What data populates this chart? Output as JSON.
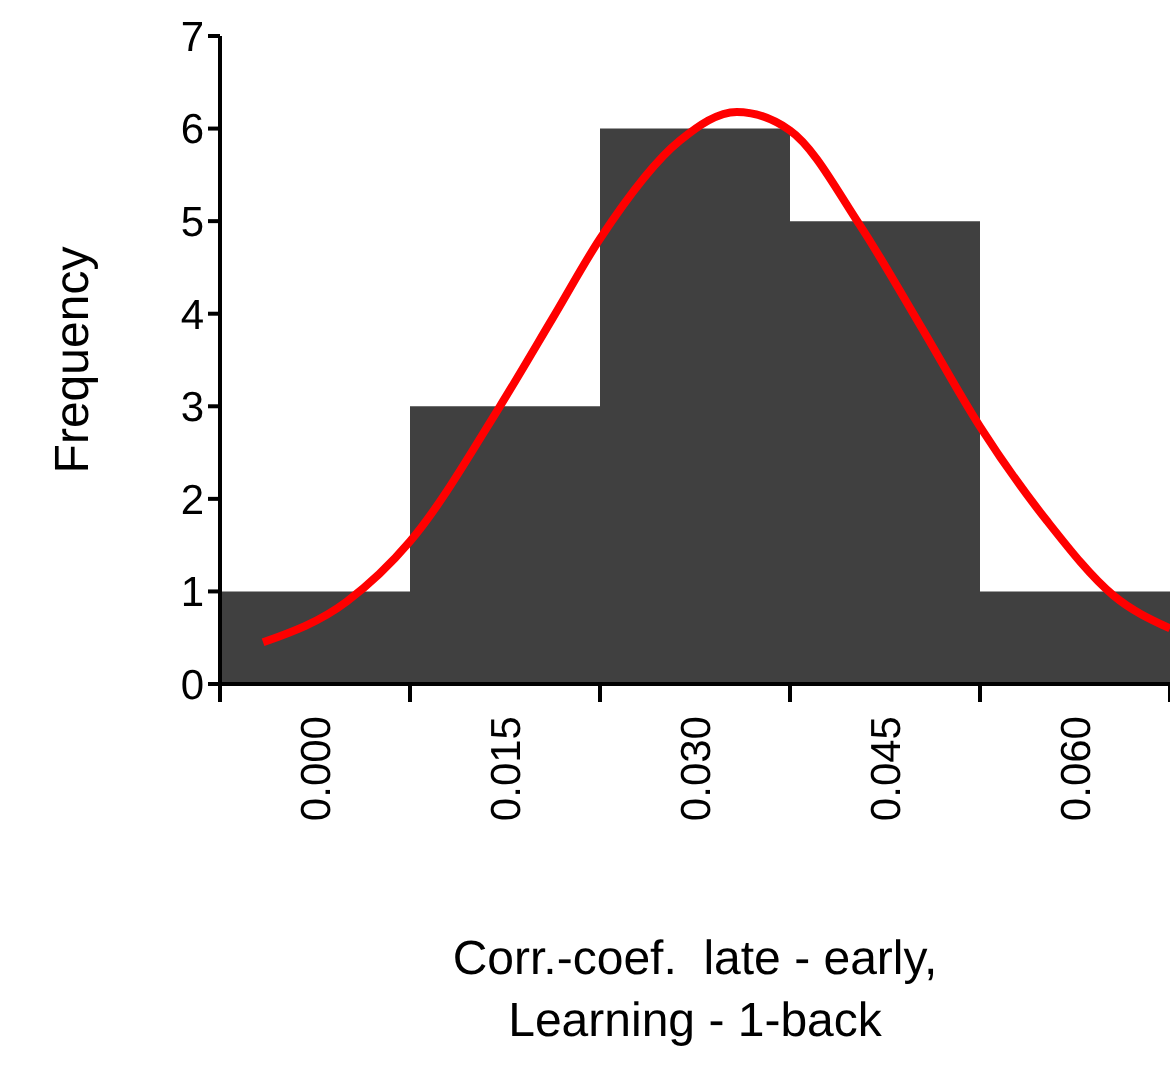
{
  "chart_data": {
    "type": "histogram",
    "xlabel": "Corr.-coef.  late - early,\nLearning - 1-back",
    "ylabel": "Frequency",
    "bins": [
      -0.0075,
      0.0075,
      0.0225,
      0.0375,
      0.0525,
      0.0675
    ],
    "values": [
      1,
      3,
      6,
      5,
      1
    ],
    "color": "#404040",
    "series": [
      {
        "type": "line",
        "color": "#ff0000",
        "x": [
          -0.0041,
          0.0025,
          0.0075,
          0.0146,
          0.0188,
          0.0225,
          0.0288,
          0.0333,
          0.0375,
          0.043,
          0.0478,
          0.0525,
          0.0578,
          0.063,
          0.0675
        ],
        "values": [
          0.45,
          0.89,
          1.54,
          3.0,
          3.96,
          4.81,
          5.87,
          6.18,
          5.98,
          4.96,
          3.87,
          2.78,
          1.76,
          0.96,
          0.6
        ]
      }
    ],
    "xlim": [
      -0.0075,
      0.0675
    ],
    "xticks": [
      {
        "value": -0.0075,
        "label": null
      },
      {
        "value": 0,
        "label": "0.000"
      },
      {
        "value": 0.0075,
        "label": null
      },
      {
        "value": 0.015,
        "label": "0.015"
      },
      {
        "value": 0.0225,
        "label": null
      },
      {
        "value": 0.03,
        "label": "0.030"
      },
      {
        "value": 0.0375,
        "label": null
      },
      {
        "value": 0.045,
        "label": "0.045"
      },
      {
        "value": 0.0525,
        "label": null
      },
      {
        "value": 0.06,
        "label": "0.060"
      },
      {
        "value": 0.0675,
        "label": null
      }
    ],
    "ylim": [
      0,
      7
    ],
    "yticks": [
      0,
      1,
      2,
      3,
      4,
      5,
      6,
      7
    ],
    "grid": false,
    "legend": false
  }
}
